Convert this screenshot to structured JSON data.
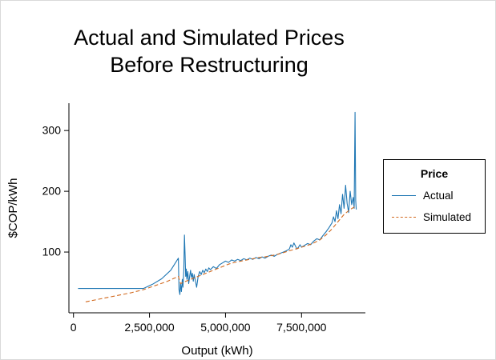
{
  "title": {
    "line1": "Actual and Simulated Prices",
    "line2": "Before Restructuring"
  },
  "chart_data": {
    "type": "line",
    "title": "Actual and Simulated Prices Before Restructuring",
    "xlabel": "Output (kWh)",
    "ylabel": "$COP/kWh",
    "xlim": [
      -150000,
      9600000
    ],
    "ylim": [
      0,
      345
    ],
    "grid": false,
    "x_ticks": [
      {
        "value": 0,
        "label": "0"
      },
      {
        "value": 2500000,
        "label": "2,500,000"
      },
      {
        "value": 5000000,
        "label": "5,000,000"
      },
      {
        "value": 7500000,
        "label": "7,500,000"
      }
    ],
    "y_ticks": [
      {
        "value": 100,
        "label": "100"
      },
      {
        "value": 200,
        "label": "200"
      },
      {
        "value": 300,
        "label": "300"
      }
    ],
    "legend": {
      "title": "Price",
      "position": "right",
      "entries": [
        {
          "label": "Actual",
          "color": "#1f77b4",
          "dash": "solid"
        },
        {
          "label": "Simulated",
          "color": "#d2691e",
          "dash": "dashed"
        }
      ]
    },
    "series": [
      {
        "name": "Actual",
        "color": "#1f77b4",
        "dash": "solid",
        "points": [
          [
            150000,
            40
          ],
          [
            800000,
            40
          ],
          [
            1500000,
            40
          ],
          [
            2300000,
            40
          ],
          [
            2600000,
            47
          ],
          [
            2900000,
            56
          ],
          [
            3200000,
            70
          ],
          [
            3450000,
            90
          ],
          [
            3470000,
            38
          ],
          [
            3500000,
            30
          ],
          [
            3520000,
            48
          ],
          [
            3550000,
            35
          ],
          [
            3580000,
            55
          ],
          [
            3600000,
            42
          ],
          [
            3630000,
            70
          ],
          [
            3650000,
            128
          ],
          [
            3670000,
            95
          ],
          [
            3690000,
            60
          ],
          [
            3710000,
            72
          ],
          [
            3730000,
            55
          ],
          [
            3760000,
            68
          ],
          [
            3790000,
            48
          ],
          [
            3820000,
            60
          ],
          [
            3850000,
            70
          ],
          [
            3880000,
            58
          ],
          [
            3910000,
            65
          ],
          [
            3940000,
            52
          ],
          [
            3970000,
            63
          ],
          [
            4000000,
            55
          ],
          [
            4050000,
            42
          ],
          [
            4100000,
            60
          ],
          [
            4150000,
            68
          ],
          [
            4200000,
            63
          ],
          [
            4250000,
            70
          ],
          [
            4300000,
            66
          ],
          [
            4350000,
            72
          ],
          [
            4400000,
            68
          ],
          [
            4450000,
            74
          ],
          [
            4500000,
            71
          ],
          [
            4600000,
            76
          ],
          [
            4700000,
            73
          ],
          [
            4800000,
            79
          ],
          [
            4900000,
            82
          ],
          [
            5000000,
            85
          ],
          [
            5100000,
            83
          ],
          [
            5200000,
            87
          ],
          [
            5300000,
            85
          ],
          [
            5400000,
            88
          ],
          [
            5500000,
            86
          ],
          [
            5600000,
            89
          ],
          [
            5700000,
            87
          ],
          [
            5800000,
            90
          ],
          [
            5900000,
            88
          ],
          [
            6000000,
            91
          ],
          [
            6100000,
            89
          ],
          [
            6200000,
            92
          ],
          [
            6300000,
            90
          ],
          [
            6400000,
            93
          ],
          [
            6500000,
            95
          ],
          [
            6600000,
            93
          ],
          [
            6700000,
            96
          ],
          [
            6800000,
            98
          ],
          [
            6900000,
            100
          ],
          [
            7000000,
            102
          ],
          [
            7100000,
            105
          ],
          [
            7150000,
            112
          ],
          [
            7200000,
            108
          ],
          [
            7250000,
            115
          ],
          [
            7300000,
            110
          ],
          [
            7350000,
            105
          ],
          [
            7400000,
            108
          ],
          [
            7450000,
            112
          ],
          [
            7500000,
            108
          ],
          [
            7600000,
            111
          ],
          [
            7700000,
            114
          ],
          [
            7800000,
            112
          ],
          [
            7900000,
            118
          ],
          [
            8000000,
            122
          ],
          [
            8100000,
            120
          ],
          [
            8200000,
            127
          ],
          [
            8300000,
            133
          ],
          [
            8400000,
            140
          ],
          [
            8500000,
            148
          ],
          [
            8550000,
            158
          ],
          [
            8600000,
            150
          ],
          [
            8650000,
            168
          ],
          [
            8700000,
            155
          ],
          [
            8750000,
            178
          ],
          [
            8800000,
            163
          ],
          [
            8850000,
            195
          ],
          [
            8900000,
            172
          ],
          [
            8950000,
            210
          ],
          [
            9000000,
            180
          ],
          [
            9050000,
            165
          ],
          [
            9100000,
            200
          ],
          [
            9150000,
            178
          ],
          [
            9200000,
            190
          ],
          [
            9230000,
            172
          ],
          [
            9260000,
            330
          ],
          [
            9280000,
            185
          ],
          [
            9300000,
            170
          ]
        ]
      },
      {
        "name": "Simulated",
        "color": "#d2691e",
        "dash": "dashed",
        "points": [
          [
            400000,
            18
          ],
          [
            900000,
            23
          ],
          [
            1400000,
            28
          ],
          [
            1900000,
            33
          ],
          [
            2300000,
            38
          ],
          [
            2700000,
            45
          ],
          [
            3100000,
            52
          ],
          [
            3450000,
            60
          ],
          [
            3520000,
            48
          ],
          [
            3700000,
            52
          ],
          [
            3900000,
            56
          ],
          [
            4100000,
            60
          ],
          [
            4300000,
            64
          ],
          [
            4500000,
            68
          ],
          [
            4700000,
            72
          ],
          [
            4900000,
            76
          ],
          [
            5100000,
            80
          ],
          [
            5300000,
            83
          ],
          [
            5500000,
            85
          ],
          [
            5700000,
            87
          ],
          [
            5900000,
            89
          ],
          [
            6100000,
            91
          ],
          [
            6300000,
            92
          ],
          [
            6500000,
            94
          ],
          [
            6700000,
            96
          ],
          [
            6900000,
            99
          ],
          [
            7100000,
            102
          ],
          [
            7300000,
            105
          ],
          [
            7500000,
            108
          ],
          [
            7700000,
            111
          ],
          [
            7900000,
            115
          ],
          [
            8100000,
            120
          ],
          [
            8300000,
            128
          ],
          [
            8500000,
            138
          ],
          [
            8700000,
            150
          ],
          [
            8900000,
            162
          ],
          [
            9100000,
            170
          ],
          [
            9300000,
            176
          ]
        ]
      }
    ]
  }
}
